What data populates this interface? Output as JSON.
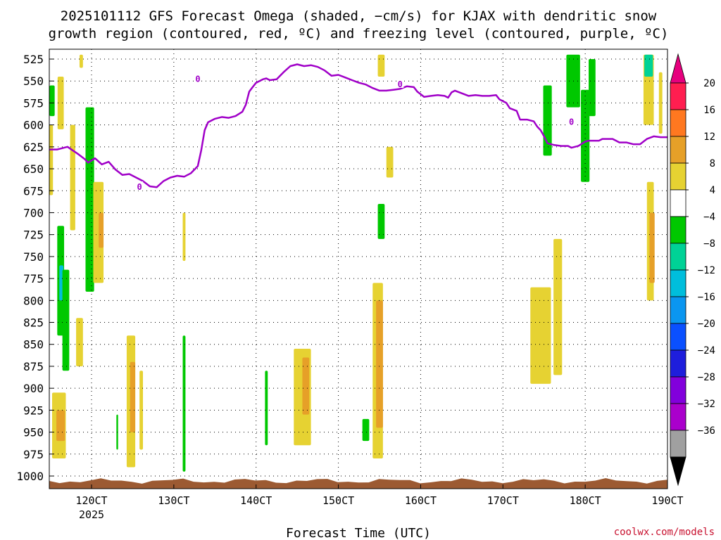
{
  "chart_data": {
    "type": "heatmap",
    "title_line1": "2025101112 GFS Forecast Omega (shaded, −cm/s) for KJAX with dendritic snow",
    "title_line2": "growth region (contoured, red, ºC) and freezing level (contoured, purple, ºC)",
    "xlabel": "Forecast Time (UTC)",
    "x_tick_labels": [
      "120CT",
      "130CT",
      "140CT",
      "150CT",
      "160CT",
      "170CT",
      "180CT",
      "190CT"
    ],
    "x_tick_hours": [
      12,
      36,
      60,
      84,
      108,
      132,
      156,
      180
    ],
    "x_sublabel": "2025",
    "xlim_hours": [
      -1,
      180
    ],
    "y_tick_labels": [
      "525",
      "550",
      "575",
      "600",
      "625",
      "650",
      "675",
      "700",
      "725",
      "750",
      "775",
      "800",
      "825",
      "850",
      "875",
      "900",
      "925",
      "950",
      "975",
      "1000"
    ],
    "ylim_hpa": [
      525,
      1000
    ],
    "colorbar": {
      "tick_labels": [
        "20",
        "16",
        "12",
        "8",
        "4",
        "−4",
        "−8",
        "−12",
        "−16",
        "−20",
        "−24",
        "−28",
        "−32",
        "−36"
      ],
      "colors": [
        "#ff1e50",
        "#ff7820",
        "#e6a028",
        "#e6d232",
        "#ffffff",
        "#00c800",
        "#00d296",
        "#00bedc",
        "#0a96f0",
        "#0a50ff",
        "#1e1edc",
        "#8200dc",
        "#aa00cc",
        "#a0a0a0"
      ],
      "top_arrow_color": "#e6007e",
      "bottom_arrow_color": "#000000"
    },
    "shaded_regions": [
      {
        "t": -0.5,
        "w": 2.5,
        "p1": 600,
        "p2": 680,
        "c": "#e6d232"
      },
      {
        "t": 0.5,
        "w": 1.5,
        "p1": 555,
        "p2": 590,
        "c": "#00c800"
      },
      {
        "t": 3.0,
        "w": 1.8,
        "p1": 545,
        "p2": 605,
        "c": "#e6d232"
      },
      {
        "t": 3.0,
        "w": 2.0,
        "p1": 715,
        "p2": 840,
        "c": "#00c800"
      },
      {
        "t": 3.2,
        "w": 1.2,
        "p1": 760,
        "p2": 800,
        "c": "#00bedc"
      },
      {
        "t": 4.5,
        "w": 2.0,
        "p1": 765,
        "p2": 880,
        "c": "#00c800"
      },
      {
        "t": 6.5,
        "w": 1.5,
        "p1": 600,
        "p2": 720,
        "c": "#e6d232"
      },
      {
        "t": 2.5,
        "w": 4.0,
        "p1": 905,
        "p2": 980,
        "c": "#e6d232"
      },
      {
        "t": 3.0,
        "w": 2.5,
        "p1": 925,
        "p2": 960,
        "c": "#e6a028"
      },
      {
        "t": 8.5,
        "w": 2.0,
        "p1": 820,
        "p2": 875,
        "c": "#e6d232"
      },
      {
        "t": 11.5,
        "w": 2.5,
        "p1": 580,
        "p2": 790,
        "c": "#00c800"
      },
      {
        "t": 14.0,
        "w": 3.0,
        "p1": 665,
        "p2": 780,
        "c": "#e6d232"
      },
      {
        "t": 14.8,
        "w": 1.4,
        "p1": 700,
        "p2": 740,
        "c": "#e6a028"
      },
      {
        "t": 9.0,
        "w": 1.0,
        "p1": 520,
        "p2": 535,
        "c": "#e6d232"
      },
      {
        "t": 23.5,
        "w": 2.5,
        "p1": 840,
        "p2": 990,
        "c": "#e6d232"
      },
      {
        "t": 24.0,
        "w": 1.5,
        "p1": 870,
        "p2": 950,
        "c": "#e6a028"
      },
      {
        "t": 26.5,
        "w": 1.0,
        "p1": 880,
        "p2": 970,
        "c": "#e6d232"
      },
      {
        "t": 19.5,
        "w": 0.5,
        "p1": 930,
        "p2": 970,
        "c": "#00c800"
      },
      {
        "t": 39.0,
        "w": 0.8,
        "p1": 840,
        "p2": 995,
        "c": "#00c800"
      },
      {
        "t": 39.0,
        "w": 0.8,
        "p1": 700,
        "p2": 755,
        "c": "#e6d232"
      },
      {
        "t": 63.0,
        "w": 0.8,
        "p1": 880,
        "p2": 965,
        "c": "#00c800"
      },
      {
        "t": 73.5,
        "w": 5.0,
        "p1": 855,
        "p2": 965,
        "c": "#e6d232"
      },
      {
        "t": 74.5,
        "w": 2.0,
        "p1": 865,
        "p2": 930,
        "c": "#e6a028"
      },
      {
        "t": 92.0,
        "w": 2.0,
        "p1": 935,
        "p2": 960,
        "c": "#00c800"
      },
      {
        "t": 95.5,
        "w": 3.0,
        "p1": 780,
        "p2": 980,
        "c": "#e6d232"
      },
      {
        "t": 96.0,
        "w": 2.0,
        "p1": 800,
        "p2": 945,
        "c": "#e6a028"
      },
      {
        "t": 96.5,
        "w": 2.0,
        "p1": 690,
        "p2": 730,
        "c": "#00c800"
      },
      {
        "t": 96.5,
        "w": 2.0,
        "p1": 520,
        "p2": 545,
        "c": "#e6d232"
      },
      {
        "t": 99.0,
        "w": 2.0,
        "p1": 625,
        "p2": 660,
        "c": "#e6d232"
      },
      {
        "t": 145.0,
        "w": 2.5,
        "p1": 555,
        "p2": 635,
        "c": "#00c800"
      },
      {
        "t": 143.0,
        "w": 6.0,
        "p1": 785,
        "p2": 895,
        "c": "#e6d232"
      },
      {
        "t": 148.0,
        "w": 2.5,
        "p1": 730,
        "p2": 885,
        "c": "#e6d232"
      },
      {
        "t": 152.5,
        "w": 4.0,
        "p1": 520,
        "p2": 580,
        "c": "#00c800"
      },
      {
        "t": 156.0,
        "w": 2.5,
        "p1": 560,
        "p2": 665,
        "c": "#00c800"
      },
      {
        "t": 158.0,
        "w": 2.0,
        "p1": 525,
        "p2": 590,
        "c": "#00c800"
      },
      {
        "t": 174.5,
        "w": 3.0,
        "p1": 520,
        "p2": 600,
        "c": "#e6d232"
      },
      {
        "t": 174.5,
        "w": 2.5,
        "p1": 520,
        "p2": 545,
        "c": "#00d296"
      },
      {
        "t": 175.0,
        "w": 2.0,
        "p1": 665,
        "p2": 800,
        "c": "#e6d232"
      },
      {
        "t": 175.5,
        "w": 1.5,
        "p1": 700,
        "p2": 780,
        "c": "#e6a028"
      },
      {
        "t": 178.0,
        "w": 1.0,
        "p1": 540,
        "p2": 610,
        "c": "#e6d232"
      }
    ],
    "freezing_level": {
      "label": "0",
      "label_positions": [
        {
          "t": 26,
          "p": 670
        },
        {
          "t": 43,
          "p": 547
        },
        {
          "t": 102,
          "p": 553
        },
        {
          "t": 152,
          "p": 596
        }
      ],
      "points": [
        [
          -1,
          628
        ],
        [
          2,
          628
        ],
        [
          5,
          625
        ],
        [
          8,
          633
        ],
        [
          10,
          639
        ],
        [
          11,
          643
        ],
        [
          13,
          638
        ],
        [
          15,
          645
        ],
        [
          17,
          642
        ],
        [
          19,
          651
        ],
        [
          21,
          657
        ],
        [
          23,
          656
        ],
        [
          25,
          660
        ],
        [
          27,
          664
        ],
        [
          29,
          670
        ],
        [
          31,
          671
        ],
        [
          33,
          664
        ],
        [
          35,
          660
        ],
        [
          37,
          658
        ],
        [
          39,
          659
        ],
        [
          41,
          655
        ],
        [
          43,
          647
        ],
        [
          44,
          629
        ],
        [
          45,
          606
        ],
        [
          46,
          597
        ],
        [
          48,
          593
        ],
        [
          50,
          591
        ],
        [
          52,
          592
        ],
        [
          54,
          590
        ],
        [
          56,
          585
        ],
        [
          57,
          577
        ],
        [
          58,
          562
        ],
        [
          59,
          557
        ],
        [
          60,
          552
        ],
        [
          62,
          548
        ],
        [
          63,
          547
        ],
        [
          64,
          549
        ],
        [
          66,
          548
        ],
        [
          68,
          540
        ],
        [
          70,
          533
        ],
        [
          72,
          531
        ],
        [
          74,
          533
        ],
        [
          76,
          532
        ],
        [
          78,
          534
        ],
        [
          80,
          538
        ],
        [
          81,
          541
        ],
        [
          82,
          544
        ],
        [
          84,
          543
        ],
        [
          86,
          546
        ],
        [
          88,
          549
        ],
        [
          90,
          552
        ],
        [
          92,
          554
        ],
        [
          94,
          558
        ],
        [
          96,
          561
        ],
        [
          98,
          561
        ],
        [
          100,
          560
        ],
        [
          102,
          559
        ],
        [
          104,
          556
        ],
        [
          106,
          557
        ],
        [
          107,
          562
        ],
        [
          109,
          568
        ],
        [
          111,
          567
        ],
        [
          113,
          566
        ],
        [
          115,
          567
        ],
        [
          116,
          569
        ],
        [
          117,
          563
        ],
        [
          118,
          561
        ],
        [
          120,
          564
        ],
        [
          122,
          567
        ],
        [
          124,
          566
        ],
        [
          126,
          567
        ],
        [
          128,
          567
        ],
        [
          130,
          566
        ],
        [
          131,
          571
        ],
        [
          133,
          575
        ],
        [
          134,
          581
        ],
        [
          136,
          584
        ],
        [
          137,
          594
        ],
        [
          139,
          594
        ],
        [
          141,
          596
        ],
        [
          142,
          602
        ],
        [
          143,
          606
        ],
        [
          144,
          613
        ],
        [
          145,
          621
        ],
        [
          147,
          623
        ],
        [
          149,
          624
        ],
        [
          151,
          624
        ],
        [
          152,
          626
        ],
        [
          154,
          624
        ],
        [
          156,
          619
        ],
        [
          157,
          618
        ],
        [
          160,
          618
        ],
        [
          161,
          616
        ],
        [
          162,
          616
        ],
        [
          164,
          616
        ],
        [
          166,
          620
        ],
        [
          168,
          620
        ],
        [
          170,
          622
        ],
        [
          172,
          622
        ],
        [
          174,
          616
        ],
        [
          176,
          613
        ],
        [
          178,
          614
        ],
        [
          180,
          614
        ]
      ]
    },
    "terrain_color": "#9c5a32",
    "freezing_color": "#a000c8"
  },
  "credit": "coolwx.com/models"
}
